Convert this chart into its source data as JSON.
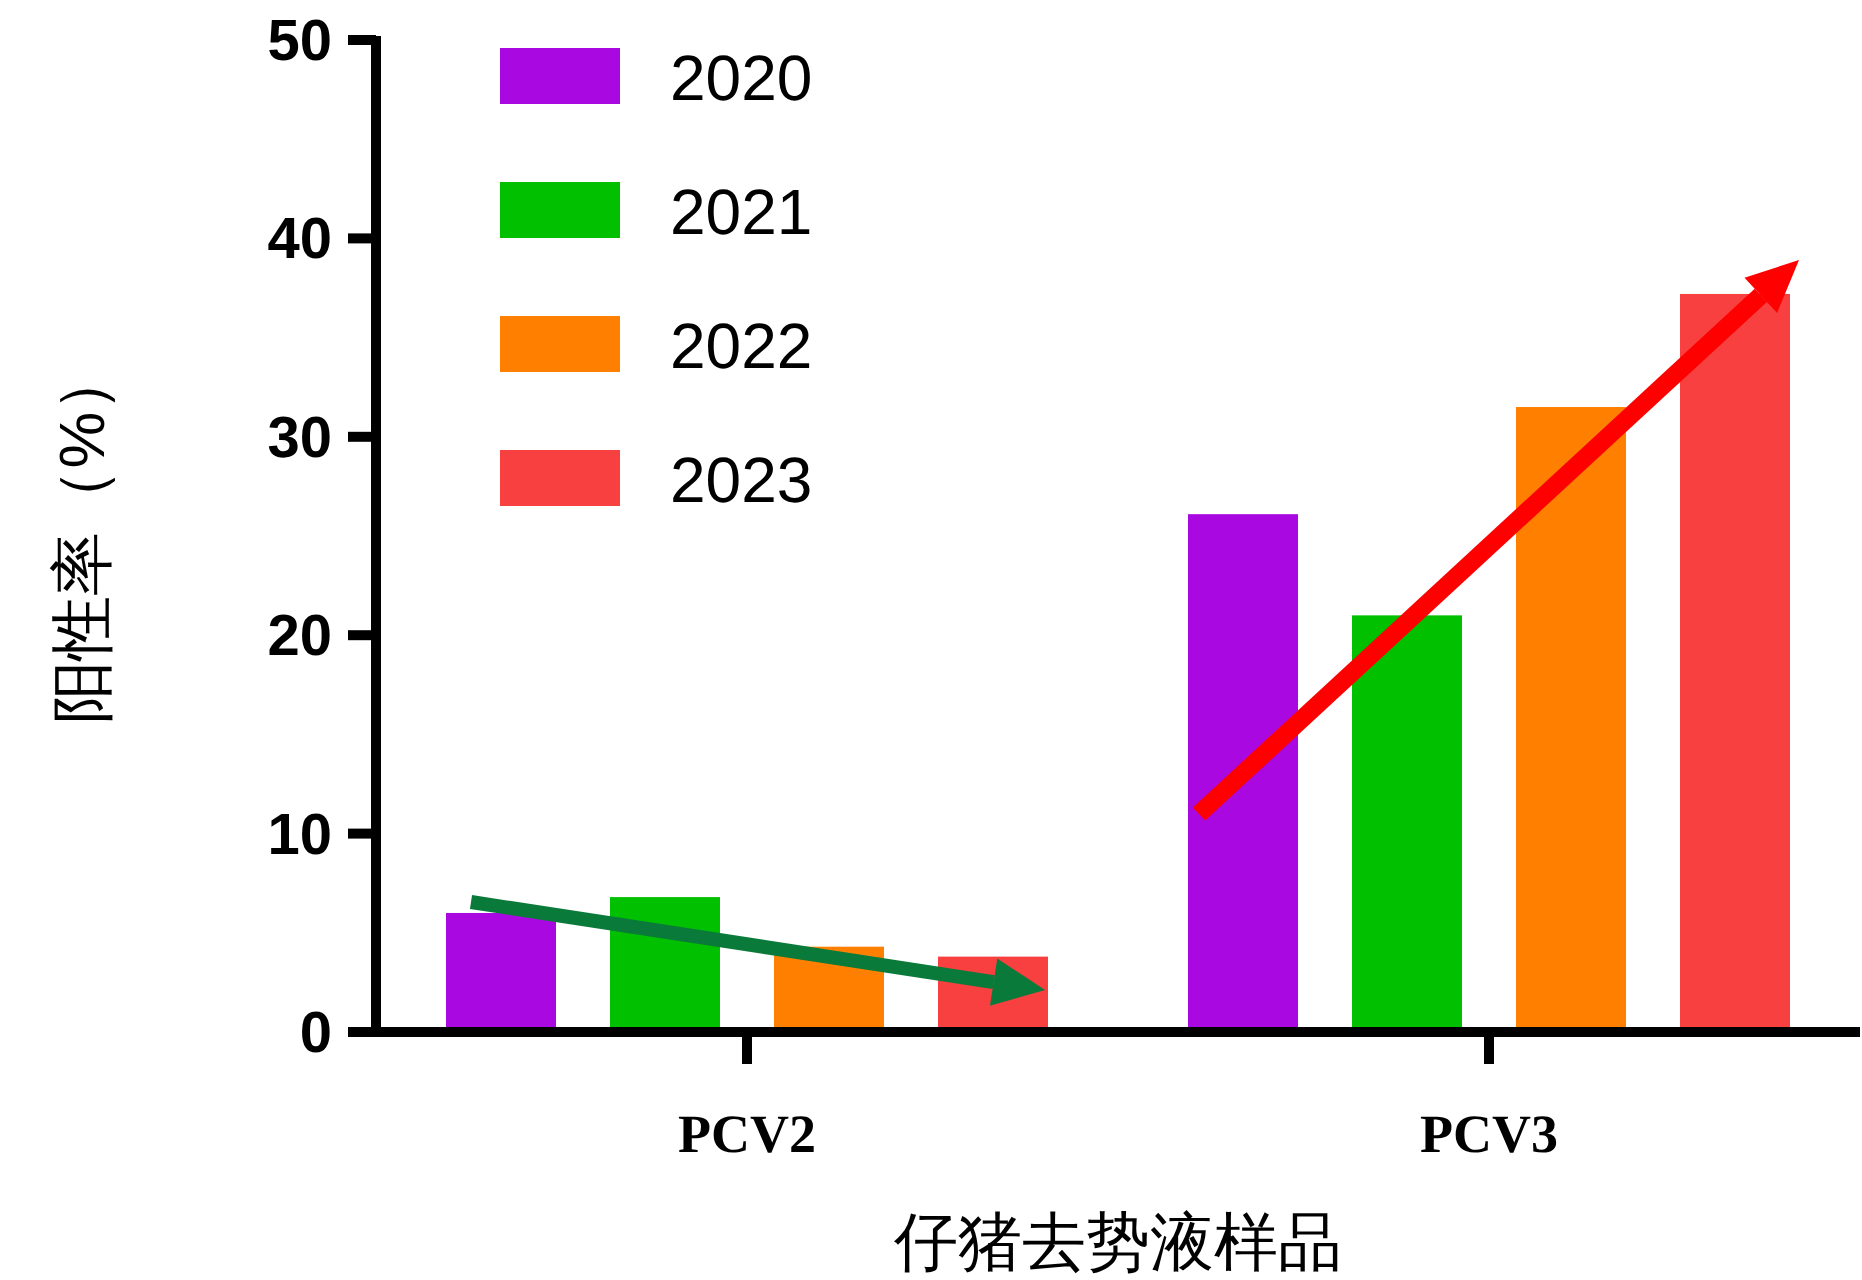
{
  "chart_data": {
    "type": "bar",
    "xlabel": "仔猪去势液样品",
    "ylabel": "阳性率（%）",
    "categories": [
      "PCV2",
      "PCV3"
    ],
    "series": [
      {
        "name": "2020",
        "color": "#aa08e0",
        "values": [
          6.0,
          26.1
        ]
      },
      {
        "name": "2021",
        "color": "#00c000",
        "values": [
          6.8,
          21.0
        ]
      },
      {
        "name": "2022",
        "color": "#ff8000",
        "values": [
          4.3,
          31.5
        ]
      },
      {
        "name": "2023",
        "color": "#f84040",
        "values": [
          3.8,
          37.2
        ]
      }
    ],
    "ylim": [
      0,
      50
    ],
    "yticks": [
      0,
      10,
      20,
      30,
      40,
      50
    ],
    "grid": false,
    "legend": "top left"
  }
}
